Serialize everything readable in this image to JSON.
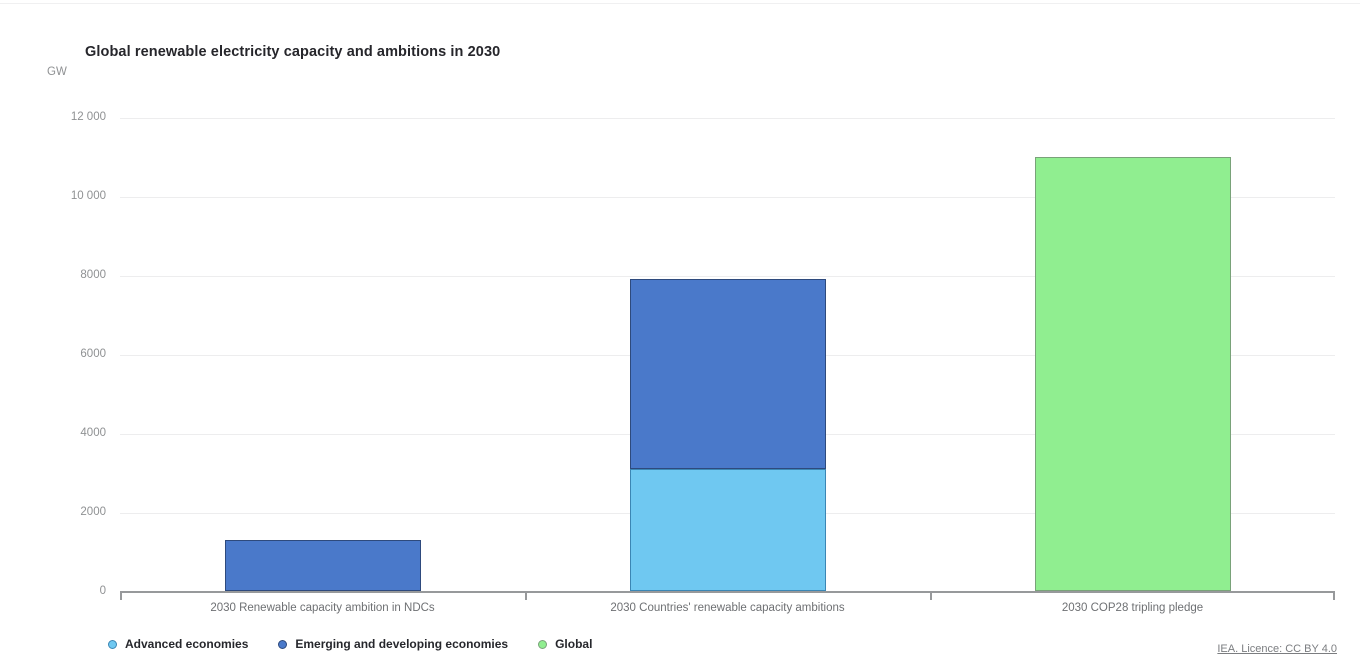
{
  "chart_data": {
    "type": "bar",
    "stacked": true,
    "title": "Global renewable electricity capacity and ambitions in 2030",
    "ylabel": "GW",
    "xlabel": "",
    "categories": [
      "2030 Renewable capacity ambition in NDCs",
      "2030 Countries' renewable capacity ambitions",
      "2030 COP28 tripling pledge"
    ],
    "series": [
      {
        "name": "Advanced economies",
        "color": "#6fc8f1",
        "border": "#3b86b4",
        "values": [
          0,
          3100,
          0
        ]
      },
      {
        "name": "Emerging and developing economies",
        "color": "#4a79ca",
        "border": "#2e4a7d",
        "values": [
          1300,
          4800,
          0
        ]
      },
      {
        "name": "Global",
        "color": "#90ee90",
        "border": "#79a279",
        "values": [
          0,
          0,
          11000
        ]
      }
    ],
    "ylim": [
      0,
      12000
    ],
    "yticks": [
      {
        "v": 0,
        "label": "0"
      },
      {
        "v": 2000,
        "label": "2000"
      },
      {
        "v": 4000,
        "label": "4000"
      },
      {
        "v": 6000,
        "label": "6000"
      },
      {
        "v": 8000,
        "label": "8000"
      },
      {
        "v": 10000,
        "label": "10 000"
      },
      {
        "v": 12000,
        "label": "12 000"
      }
    ],
    "grid": true,
    "legend_position": "bottom",
    "source": "IEA. Licence: CC BY 4.0"
  }
}
